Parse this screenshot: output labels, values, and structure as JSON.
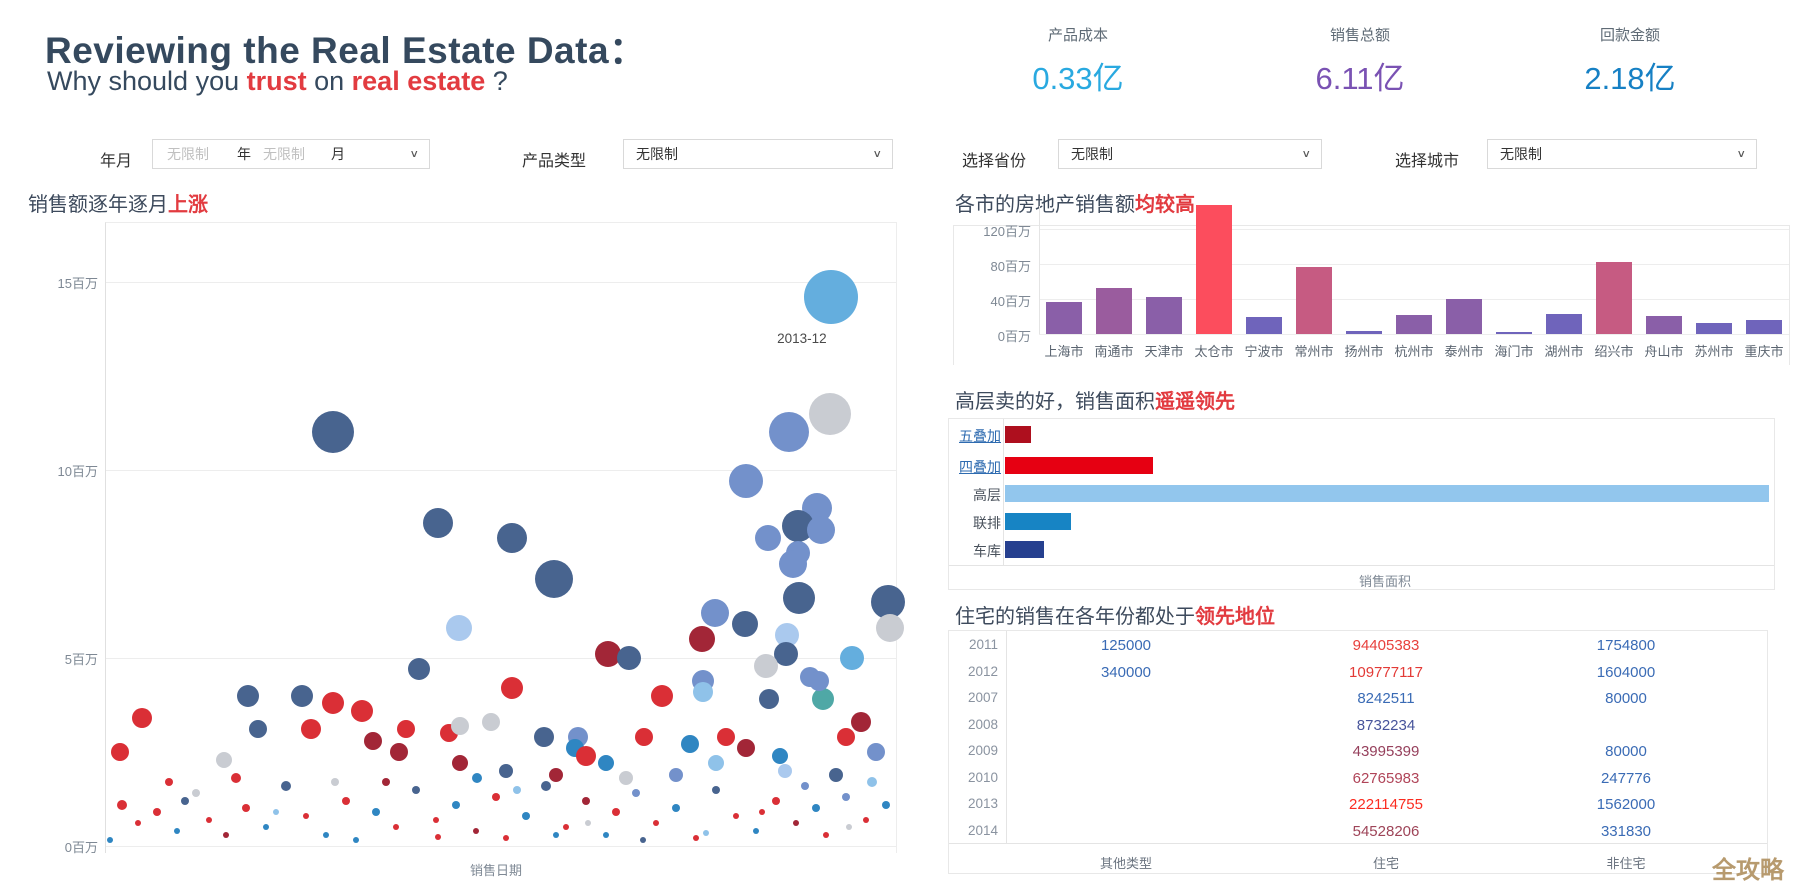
{
  "header": {
    "title": "Reviewing the Real Estate Data：",
    "subtitle_parts": [
      {
        "text": "Why should you ",
        "accent": false
      },
      {
        "text": "trust",
        "accent": true
      },
      {
        "text": " on ",
        "accent": false
      },
      {
        "text": "real estate",
        "accent": true
      },
      {
        "text": " ?",
        "accent": false
      }
    ]
  },
  "kpis": [
    {
      "label": "产品成本",
      "value": "0.33亿",
      "color": "#29a9e0"
    },
    {
      "label": "销售总额",
      "value": "6.11亿",
      "color": "#7a52b3"
    },
    {
      "label": "回款金额",
      "value": "2.18亿",
      "color": "#1680c4"
    }
  ],
  "filters": {
    "year_month": {
      "label": "年月",
      "year_placeholder": "无限制",
      "year_unit": "年",
      "month_placeholder": "无限制",
      "month_unit": "月",
      "chevron": "∨"
    },
    "product_type": {
      "label": "产品类型",
      "value": "无限制",
      "chevron": "∨"
    },
    "province": {
      "label": "选择省份",
      "value": "无限制",
      "chevron": "∨"
    },
    "city": {
      "label": "选择城市",
      "value": "无限制",
      "chevron": "∨"
    }
  },
  "palette": {
    "navy": "#48648f",
    "blue": "#7391cb",
    "paleblue": "#aac9ee",
    "sky": "#64aede",
    "lightblue": "#8fc2e9",
    "cyan": "#2f86c2",
    "red": "#da2f36",
    "maroon": "#a22637",
    "gray": "#c9ccd2",
    "teal": "#4fa8a6",
    "purple": "#8a5fa8",
    "mauve": "#9a5c9e",
    "violet": "#6f64bb",
    "barred": "#fc4d5d",
    "raspberry": "#c65b82"
  },
  "chart_data": [
    {
      "type": "scatter",
      "name": "sales-by-month-bubbles",
      "title_parts": [
        {
          "text": "销售额逐年逐月",
          "accent": false
        },
        {
          "text": "上涨",
          "accent": true
        }
      ],
      "xlabel": "销售日期",
      "ylabel": "",
      "yticks": [
        {
          "v": 0,
          "label": "0百万"
        },
        {
          "v": 5,
          "label": "5百万"
        },
        {
          "v": 10,
          "label": "10百万"
        },
        {
          "v": 15,
          "label": "15百万"
        }
      ],
      "ylim": [
        0,
        16.5
      ],
      "annotation": {
        "text": "2013-12",
        "x_pct": 88.5,
        "y_million": 13.7
      },
      "points_format": [
        "x_pct",
        "y_million",
        "radius_px",
        "color"
      ],
      "points": [
        [
          91.8,
          14.6,
          27,
          "sky"
        ],
        [
          28.7,
          11.0,
          21,
          "navy"
        ],
        [
          91.6,
          11.5,
          21,
          "gray"
        ],
        [
          86.5,
          11.0,
          20,
          "blue"
        ],
        [
          81.0,
          9.7,
          17,
          "blue"
        ],
        [
          90.0,
          9.0,
          15,
          "blue"
        ],
        [
          87.6,
          8.5,
          16,
          "navy"
        ],
        [
          90.5,
          8.4,
          14,
          "blue"
        ],
        [
          83.8,
          8.2,
          13,
          "blue"
        ],
        [
          87.6,
          7.8,
          12,
          "blue"
        ],
        [
          42.0,
          8.6,
          15,
          "navy"
        ],
        [
          51.4,
          8.2,
          15,
          "navy"
        ],
        [
          56.7,
          7.1,
          19,
          "navy"
        ],
        [
          87.0,
          7.5,
          14,
          "blue"
        ],
        [
          87.7,
          6.6,
          16,
          "navy"
        ],
        [
          99.0,
          6.5,
          17,
          "navy"
        ],
        [
          44.7,
          5.8,
          13,
          "paleblue"
        ],
        [
          77.1,
          6.2,
          14,
          "blue"
        ],
        [
          80.9,
          5.9,
          13,
          "navy"
        ],
        [
          99.2,
          5.8,
          14,
          "gray"
        ],
        [
          75.4,
          5.5,
          13,
          "maroon"
        ],
        [
          63.5,
          5.1,
          13,
          "maroon"
        ],
        [
          66.2,
          5.0,
          12,
          "navy"
        ],
        [
          86.2,
          5.6,
          12,
          "paleblue"
        ],
        [
          86.1,
          5.1,
          12,
          "navy"
        ],
        [
          83.5,
          4.8,
          12,
          "gray"
        ],
        [
          94.4,
          5.0,
          12,
          "sky"
        ],
        [
          39.6,
          4.7,
          11,
          "navy"
        ],
        [
          75.6,
          4.4,
          11,
          "blue"
        ],
        [
          75.6,
          4.1,
          10,
          "lightblue"
        ],
        [
          51.4,
          4.2,
          11,
          "red"
        ],
        [
          70.4,
          4.0,
          11,
          "red"
        ],
        [
          90.8,
          3.9,
          11,
          "teal"
        ],
        [
          83.9,
          3.9,
          10,
          "navy"
        ],
        [
          89.1,
          4.5,
          10,
          "blue"
        ],
        [
          90.3,
          4.4,
          10,
          "blue"
        ],
        [
          18.0,
          4.0,
          11,
          "navy"
        ],
        [
          24.8,
          4.0,
          11,
          "navy"
        ],
        [
          28.7,
          3.8,
          11,
          "red"
        ],
        [
          32.4,
          3.6,
          11,
          "red"
        ],
        [
          4.6,
          3.4,
          10,
          "red"
        ],
        [
          19.2,
          3.1,
          9,
          "navy"
        ],
        [
          25.9,
          3.1,
          10,
          "red"
        ],
        [
          38.0,
          3.1,
          9,
          "red"
        ],
        [
          33.8,
          2.8,
          9,
          "maroon"
        ],
        [
          37.1,
          2.5,
          9,
          "maroon"
        ],
        [
          43.4,
          3.0,
          9,
          "red"
        ],
        [
          44.8,
          3.2,
          9,
          "gray"
        ],
        [
          48.7,
          3.3,
          9,
          "gray"
        ],
        [
          44.8,
          2.2,
          8,
          "maroon"
        ],
        [
          1.8,
          2.5,
          9,
          "red"
        ],
        [
          14.9,
          2.3,
          8,
          "gray"
        ],
        [
          59.7,
          2.9,
          10,
          "blue"
        ],
        [
          59.4,
          2.6,
          9,
          "cyan"
        ],
        [
          60.8,
          2.4,
          10,
          "red"
        ],
        [
          55.4,
          2.9,
          10,
          "navy"
        ],
        [
          68.1,
          2.9,
          9,
          "red"
        ],
        [
          73.9,
          2.7,
          9,
          "cyan"
        ],
        [
          78.5,
          2.9,
          9,
          "red"
        ],
        [
          81.0,
          2.6,
          9,
          "maroon"
        ],
        [
          93.7,
          2.9,
          9,
          "red"
        ],
        [
          95.6,
          3.3,
          10,
          "maroon"
        ],
        [
          97.5,
          2.5,
          9,
          "blue"
        ],
        [
          85.3,
          2.4,
          8,
          "cyan"
        ],
        [
          77.2,
          2.2,
          8,
          "lightblue"
        ],
        [
          63.3,
          2.2,
          8,
          "cyan"
        ],
        [
          50.6,
          2.0,
          7,
          "navy"
        ],
        [
          56.9,
          1.9,
          7,
          "maroon"
        ],
        [
          65.8,
          1.8,
          7,
          "gray"
        ],
        [
          72.2,
          1.9,
          7,
          "blue"
        ],
        [
          86.0,
          2.0,
          7,
          "paleblue"
        ],
        [
          92.4,
          1.9,
          7,
          "navy"
        ],
        [
          0.5,
          0.15,
          3,
          "cyan"
        ],
        [
          2.0,
          1.1,
          5,
          "red"
        ],
        [
          4.0,
          0.6,
          3,
          "red"
        ],
        [
          6.5,
          0.9,
          4,
          "red"
        ],
        [
          9.0,
          0.4,
          3,
          "cyan"
        ],
        [
          11.4,
          1.4,
          4,
          "gray"
        ],
        [
          13.0,
          0.7,
          3,
          "red"
        ],
        [
          15.2,
          0.3,
          3,
          "maroon"
        ],
        [
          17.7,
          1.0,
          4,
          "red"
        ],
        [
          20.3,
          0.5,
          3,
          "cyan"
        ],
        [
          22.8,
          1.6,
          5,
          "navy"
        ],
        [
          25.3,
          0.8,
          3,
          "red"
        ],
        [
          27.8,
          0.3,
          3,
          "cyan"
        ],
        [
          30.4,
          1.2,
          4,
          "red"
        ],
        [
          31.6,
          0.15,
          3,
          "cyan"
        ],
        [
          34.2,
          0.9,
          4,
          "cyan"
        ],
        [
          36.7,
          0.5,
          3,
          "red"
        ],
        [
          39.2,
          1.5,
          4,
          "navy"
        ],
        [
          41.8,
          0.7,
          3,
          "red"
        ],
        [
          44.3,
          1.1,
          4,
          "cyan"
        ],
        [
          46.8,
          0.4,
          3,
          "maroon"
        ],
        [
          49.4,
          1.3,
          4,
          "red"
        ],
        [
          50.6,
          0.2,
          3,
          "red"
        ],
        [
          53.2,
          0.8,
          4,
          "cyan"
        ],
        [
          55.7,
          1.6,
          5,
          "navy"
        ],
        [
          58.2,
          0.5,
          3,
          "red"
        ],
        [
          60.8,
          1.2,
          4,
          "maroon"
        ],
        [
          63.3,
          0.3,
          3,
          "cyan"
        ],
        [
          64.6,
          0.9,
          4,
          "red"
        ],
        [
          67.1,
          1.4,
          4,
          "blue"
        ],
        [
          69.6,
          0.6,
          3,
          "red"
        ],
        [
          72.2,
          1.0,
          4,
          "cyan"
        ],
        [
          74.7,
          0.2,
          3,
          "red"
        ],
        [
          77.2,
          1.5,
          4,
          "navy"
        ],
        [
          79.7,
          0.8,
          3,
          "red"
        ],
        [
          82.3,
          0.4,
          3,
          "cyan"
        ],
        [
          84.8,
          1.2,
          4,
          "red"
        ],
        [
          87.3,
          0.6,
          3,
          "maroon"
        ],
        [
          89.9,
          1.0,
          4,
          "cyan"
        ],
        [
          91.1,
          0.3,
          3,
          "red"
        ],
        [
          93.7,
          1.3,
          4,
          "blue"
        ],
        [
          96.2,
          0.7,
          3,
          "red"
        ],
        [
          98.7,
          1.1,
          4,
          "cyan"
        ],
        [
          8.0,
          1.7,
          4,
          "red"
        ],
        [
          21.5,
          0.9,
          3,
          "lightblue"
        ],
        [
          35.4,
          1.7,
          4,
          "maroon"
        ],
        [
          47.0,
          1.8,
          5,
          "cyan"
        ],
        [
          61.0,
          0.6,
          3,
          "gray"
        ],
        [
          76.0,
          0.35,
          3,
          "lightblue"
        ],
        [
          88.5,
          1.6,
          4,
          "blue"
        ],
        [
          94.0,
          0.5,
          3,
          "gray"
        ],
        [
          52.0,
          1.5,
          4,
          "lightblue"
        ],
        [
          42.0,
          0.25,
          3,
          "red"
        ],
        [
          16.5,
          1.8,
          5,
          "red"
        ],
        [
          10.0,
          1.2,
          4,
          "navy"
        ],
        [
          29.0,
          1.7,
          4,
          "gray"
        ],
        [
          68.0,
          0.15,
          3,
          "navy"
        ],
        [
          83.0,
          0.9,
          3,
          "red"
        ],
        [
          97.0,
          1.7,
          5,
          "lightblue"
        ],
        [
          57.0,
          0.3,
          3,
          "cyan"
        ]
      ]
    },
    {
      "type": "bar",
      "name": "sales-by-city",
      "title_parts": [
        {
          "text": "各市的房地产销售额",
          "accent": false
        },
        {
          "text": "均较高",
          "accent": true
        }
      ],
      "categories": [
        "上海市",
        "南通市",
        "天津市",
        "太仓市",
        "宁波市",
        "常州市",
        "扬州市",
        "杭州市",
        "泰州市",
        "海门市",
        "湖州市",
        "绍兴市",
        "舟山市",
        "苏州市",
        "重庆市"
      ],
      "values_million": [
        37,
        53,
        42,
        147,
        19,
        77,
        3,
        22,
        40,
        2,
        23,
        82,
        21,
        13,
        16
      ],
      "bar_colors": [
        "purple",
        "mauve",
        "purple",
        "barred",
        "violet",
        "raspberry",
        "violet",
        "purple",
        "purple",
        "violet",
        "violet",
        "raspberry",
        "purple",
        "violet",
        "violet"
      ],
      "yticks": [
        {
          "v": 0,
          "label": "0百万"
        },
        {
          "v": 40,
          "label": "40百万"
        },
        {
          "v": 80,
          "label": "80百万"
        },
        {
          "v": 120,
          "label": "120百万"
        }
      ],
      "ylim": [
        0,
        120
      ],
      "note": "太仓市 bar exceeds the visible axis maximum"
    },
    {
      "type": "bar",
      "name": "sales-area-by-building-type",
      "orientation": "horizontal",
      "title_parts": [
        {
          "text": "高层卖的好，销售面积",
          "accent": false
        },
        {
          "text": "遥遥领先",
          "accent": true
        }
      ],
      "categories": [
        {
          "label": "五叠加",
          "link": true
        },
        {
          "label": "四叠加",
          "link": true
        },
        {
          "label": "高层",
          "link": false
        },
        {
          "label": "联排",
          "link": false
        },
        {
          "label": "车库",
          "link": false
        }
      ],
      "values_relative_pct": [
        3.4,
        19.4,
        100,
        8.7,
        5.1
      ],
      "bar_colors": [
        "#ae0f1e",
        "#e60012",
        "#92c6ed",
        "#1784c4",
        "#26408f"
      ],
      "xlabel": "销售面积"
    },
    {
      "type": "table",
      "name": "sales-by-year-and-type",
      "title_parts": [
        {
          "text": "住宅的销售在各年份都处于",
          "accent": false
        },
        {
          "text": "领先地位",
          "accent": true
        }
      ],
      "columns": [
        "其他类型",
        "住宅",
        "非住宅"
      ],
      "value_color_default": "#3a6bb5",
      "rows": [
        {
          "year": "2011",
          "other": "125000",
          "resi": "94405383",
          "resi_color": "#e8403c",
          "nonresi": "1754800"
        },
        {
          "year": "2012",
          "other": "340000",
          "resi": "109777117",
          "resi_color": "#e33a36",
          "nonresi": "1604000"
        },
        {
          "year": "2007",
          "other": "",
          "resi": "8242511",
          "resi_color": "#3a6bb5",
          "nonresi": "80000"
        },
        {
          "year": "2008",
          "other": "",
          "resi": "8732234",
          "resi_color": "#47549b",
          "nonresi": ""
        },
        {
          "year": "2009",
          "other": "",
          "resi": "43995399",
          "resi_color": "#96405c",
          "nonresi": "80000"
        },
        {
          "year": "2010",
          "other": "",
          "resi": "62765983",
          "resi_color": "#b04458",
          "nonresi": "247776"
        },
        {
          "year": "2013",
          "other": "",
          "resi": "222114755",
          "resi_color": "#fb2c20",
          "nonresi": "1562000"
        },
        {
          "year": "2014",
          "other": "",
          "resi": "54528206",
          "resi_color": "#9e4458",
          "nonresi": "331830"
        }
      ]
    }
  ],
  "watermark": "全攻略"
}
